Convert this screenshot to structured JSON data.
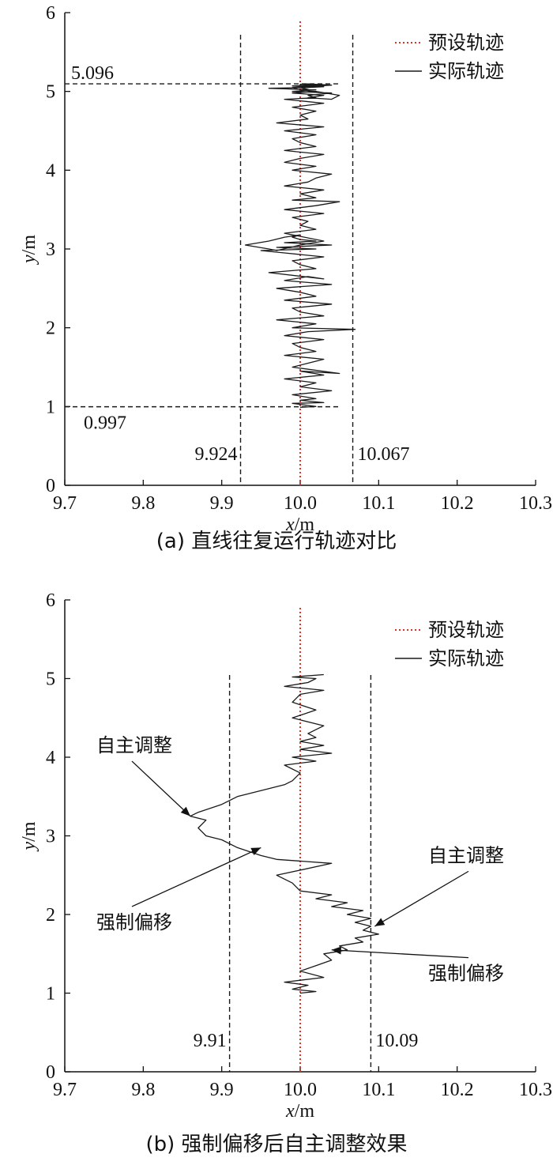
{
  "chart_data": [
    {
      "type": "line",
      "caption": "(a) 直线往复运行轨迹对比",
      "xlabel": "x/m",
      "ylabel": "y/m",
      "xlim": [
        9.7,
        10.3
      ],
      "ylim": [
        0,
        6
      ],
      "xticks": [
        "9.7",
        "9.8",
        "9.9",
        "10.0",
        "10.1",
        "10.2",
        "10.3"
      ],
      "yticks": [
        "0",
        "1",
        "2",
        "3",
        "4",
        "5",
        "6"
      ],
      "legend": {
        "position": "top-right",
        "entries": [
          "预设轨迹",
          "实际轨迹"
        ]
      },
      "colors": {
        "preset": "#e0302a",
        "actual": "#1a1a1a",
        "reference": "#1a1a1a"
      },
      "series": [
        {
          "name": "预设轨迹",
          "style": "dotted",
          "x": [
            10.0,
            10.0
          ],
          "y": [
            0,
            5.92
          ]
        },
        {
          "name": "实际轨迹",
          "style": "solid",
          "x": [
            10.0,
            10.02,
            9.99,
            10.03,
            10.0,
            10.02,
            9.99,
            10.04,
            10.0,
            10.02,
            9.98,
            10.03,
            10.0,
            10.05,
            9.99,
            10.01,
            10.03,
            9.98,
            10.02,
            10.0,
            9.99,
            10.03,
            9.98,
            10.01,
            10.07,
            9.99,
            10.02,
            9.97,
            10.03,
            10.0,
            9.99,
            10.04,
            9.98,
            10.02,
            10.0,
            9.97,
            10.04,
            9.98,
            10.01,
            10.03,
            9.96,
            10.02,
            10.0,
            9.99,
            10.03,
            9.98,
            9.95,
            10.02,
            9.97,
            10.04,
            9.98,
            10.02,
            10.0,
            9.99,
            10.0,
            9.98,
            9.96,
            9.93,
            9.96,
            9.97,
            10.0,
            10.03,
            9.98,
            10.02,
            10.0,
            10.01,
            9.99,
            10.03,
            9.98,
            10.02,
            10.05,
            9.99,
            10.02,
            10.0,
            10.03,
            9.98,
            10.01,
            10.02,
            10.04,
            9.99,
            10.02,
            9.98,
            10.0,
            10.03,
            9.98,
            10.02,
            10.0,
            9.99,
            10.02,
            9.98,
            10.03,
            9.97,
            10.01,
            10.0,
            10.02,
            9.99,
            10.03,
            10.0,
            9.98,
            10.02,
            10.01,
            10.04,
            9.99,
            10.02,
            9.96,
            10.01,
            10.03,
            9.99,
            10.02,
            10.0,
            10.01,
            10.04,
            9.99,
            10.0,
            10.02,
            9.99,
            10.03,
            10.01,
            10.04,
            10.05,
            10.02,
            10.0,
            10.03,
            10.0
          ],
          "y": [
            0.99,
            1.0,
            1.04,
            1.05,
            1.08,
            1.1,
            1.15,
            1.2,
            1.25,
            1.3,
            1.35,
            1.4,
            1.45,
            1.42,
            1.5,
            1.55,
            1.6,
            1.65,
            1.7,
            1.75,
            1.8,
            1.85,
            1.9,
            1.95,
            1.98,
            2.0,
            2.05,
            2.1,
            2.15,
            2.2,
            2.25,
            2.3,
            2.35,
            2.4,
            2.45,
            2.5,
            2.55,
            2.6,
            2.65,
            2.62,
            2.7,
            2.75,
            2.8,
            2.85,
            2.9,
            2.95,
            2.98,
            3.0,
            3.02,
            3.05,
            3.08,
            3.1,
            3.12,
            3.15,
            3.18,
            3.15,
            3.1,
            3.05,
            3.0,
            2.98,
            3.05,
            3.1,
            3.2,
            3.25,
            3.3,
            3.35,
            3.4,
            3.45,
            3.5,
            3.55,
            3.6,
            3.62,
            3.65,
            3.7,
            3.75,
            3.8,
            3.85,
            3.9,
            3.95,
            4.0,
            4.05,
            4.1,
            4.15,
            4.2,
            4.25,
            4.3,
            4.35,
            4.4,
            4.45,
            4.5,
            4.55,
            4.6,
            4.65,
            4.7,
            4.75,
            4.8,
            4.85,
            4.88,
            4.9,
            4.92,
            4.95,
            4.98,
            5.0,
            5.02,
            5.04,
            5.05,
            5.06,
            5.07,
            5.08,
            5.09,
            5.096,
            5.08,
            5.05,
            5.02,
            5.0,
            4.98,
            4.95,
            4.92,
            4.9,
            4.95,
            5.0,
            5.05,
            5.08,
            5.09
          ]
        }
      ],
      "reference_lines": [
        {
          "axis": "x",
          "value": 9.924,
          "label": "9.924"
        },
        {
          "axis": "x",
          "value": 10.067,
          "label": "10.067"
        },
        {
          "axis": "y",
          "value": 5.096,
          "label": "5.096"
        },
        {
          "axis": "y",
          "value": 0.997,
          "label": "0.997"
        }
      ],
      "annotations": []
    },
    {
      "type": "line",
      "caption": "(b) 强制偏移后自主调整效果",
      "xlabel": "x/m",
      "ylabel": "y/m",
      "xlim": [
        9.7,
        10.3
      ],
      "ylim": [
        0,
        6
      ],
      "xticks": [
        "9.7",
        "9.8",
        "9.9",
        "10.0",
        "10.1",
        "10.2",
        "10.3"
      ],
      "yticks": [
        "0",
        "1",
        "2",
        "3",
        "4",
        "5",
        "6"
      ],
      "legend": {
        "position": "top-right",
        "entries": [
          "预设轨迹",
          "实际轨迹"
        ]
      },
      "colors": {
        "preset": "#e0302a",
        "actual": "#1a1a1a",
        "reference": "#1a1a1a"
      },
      "series": [
        {
          "name": "预设轨迹",
          "style": "dotted",
          "x": [
            10.0,
            10.0
          ],
          "y": [
            0,
            5.92
          ]
        },
        {
          "name": "实际轨迹",
          "style": "solid",
          "x": [
            10.0,
            10.02,
            9.99,
            10.01,
            9.98,
            10.03,
            10.0,
            10.02,
            10.04,
            10.03,
            10.06,
            10.05,
            10.08,
            10.07,
            10.1,
            10.08,
            10.09,
            10.07,
            10.09,
            10.06,
            10.08,
            10.04,
            10.06,
            10.02,
            10.04,
            10.0,
            9.99,
            9.97,
            10.04,
            9.97,
            9.95,
            9.92,
            9.9,
            9.88,
            9.87,
            9.88,
            9.86,
            9.87,
            9.9,
            9.92,
            9.94,
            9.96,
            9.98,
            9.99,
            10.0,
            9.98,
            10.02,
            9.99,
            10.04,
            10.0,
            10.03,
            10.0,
            10.02,
            10.01,
            10.03,
            9.99,
            10.02,
            9.99,
            10.0,
            10.03,
            9.98,
            10.01,
            10.02,
            9.99,
            10.03
          ],
          "y": [
            1.0,
            1.02,
            1.05,
            1.1,
            1.14,
            1.2,
            1.28,
            1.35,
            1.42,
            1.5,
            1.55,
            1.6,
            1.65,
            1.7,
            1.75,
            1.8,
            1.85,
            1.9,
            1.95,
            2.0,
            2.05,
            2.1,
            2.15,
            2.2,
            2.25,
            2.3,
            2.4,
            2.5,
            2.65,
            2.7,
            2.75,
            2.85,
            2.95,
            3.0,
            3.1,
            3.2,
            3.25,
            3.3,
            3.4,
            3.5,
            3.55,
            3.6,
            3.65,
            3.7,
            3.8,
            3.9,
            3.95,
            4.0,
            4.05,
            4.1,
            4.15,
            4.2,
            4.25,
            4.3,
            4.4,
            4.5,
            4.6,
            4.7,
            4.8,
            4.85,
            4.9,
            4.95,
            5.0,
            5.02,
            5.05
          ]
        }
      ],
      "reference_lines": [
        {
          "axis": "x",
          "value": 9.91,
          "label": "9.91"
        },
        {
          "axis": "x",
          "value": 10.09,
          "label": "10.09"
        }
      ],
      "annotations": [
        {
          "text": "自主调整",
          "side": "left",
          "target_x": 9.86,
          "target_y": 3.25,
          "text_x": 9.75,
          "text_y": 4.15
        },
        {
          "text": "强制偏移",
          "side": "left",
          "target_x": 9.95,
          "target_y": 2.85,
          "text_x": 9.75,
          "text_y": 1.9
        },
        {
          "text": "自主调整",
          "side": "right",
          "target_x": 10.095,
          "target_y": 1.85,
          "text_x": 10.15,
          "text_y": 2.75
        },
        {
          "text": "强制偏移",
          "side": "right",
          "target_x": 10.04,
          "target_y": 1.55,
          "text_x": 10.15,
          "text_y": 1.25
        }
      ]
    }
  ]
}
